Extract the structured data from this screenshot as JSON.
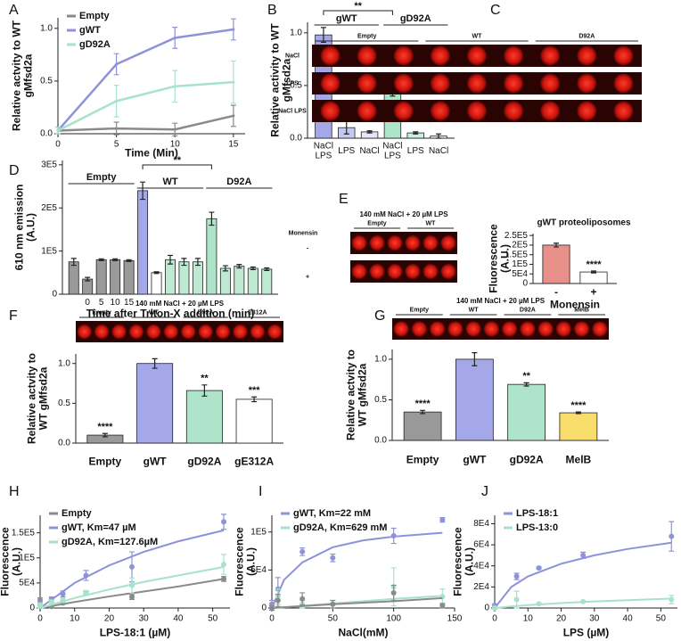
{
  "chart_data": [
    {
      "panel": "A",
      "type": "line",
      "x_label": "Time (Min)",
      "y_label": "Relative actvity to WT gMfsd2a",
      "xlim": [
        0,
        16
      ],
      "xticks": [
        0,
        5,
        10,
        15
      ],
      "ylim": [
        0,
        1.1
      ],
      "yticks": [
        {
          "value": 0,
          "label": "0.0"
        },
        {
          "value": 0.5,
          "label": "0.5"
        },
        {
          "value": 1,
          "label": "1.0"
        }
      ],
      "legend": "upper left",
      "series": [
        {
          "name": "Empty",
          "color": "#8a8a8a",
          "x": [
            0,
            5,
            10,
            15
          ],
          "values": [
            0.03,
            0.05,
            0.04,
            0.17
          ],
          "errors": [
            0.03,
            0.06,
            0.06,
            0.1
          ]
        },
        {
          "name": "gWT",
          "color": "#8e92d8",
          "x": [
            0,
            5,
            10,
            15
          ],
          "values": [
            0.03,
            0.66,
            0.91,
            0.99
          ],
          "errors": [
            0.03,
            0.1,
            0.1,
            0.1
          ]
        },
        {
          "name": "gD92A",
          "color": "#a6e3c8",
          "x": [
            0,
            5,
            10,
            15
          ],
          "values": [
            0.03,
            0.31,
            0.45,
            0.49
          ],
          "errors": [
            0.03,
            0.15,
            0.15,
            0.2
          ]
        }
      ]
    },
    {
      "panel": "B",
      "type": "bar",
      "y_label": "Relative activity to WT gMfsd2a",
      "categories": [
        "NaCl LPS",
        "LPS",
        "NaCl",
        "NaCl LPS",
        "LPS",
        "NaCl"
      ],
      "values": [
        0.98,
        0.1,
        0.06,
        0.48,
        0.05,
        0.02
      ],
      "errors": [
        0.07,
        0.06,
        0.01,
        0.08,
        0.01,
        0.02
      ],
      "colors": [
        "#a4a8e8",
        "#c5c8f0",
        "#e6e7f8",
        "#aee4c9",
        "#c9eedb",
        "#e5f6ee"
      ],
      "ylim": [
        0,
        1.1
      ],
      "yticks": [
        {
          "value": 0,
          "label": "0.0"
        },
        {
          "value": 0.5,
          "label": "0.5"
        },
        {
          "value": 1,
          "label": "1.0"
        }
      ],
      "groups": [
        "gWT",
        "gD92A"
      ],
      "bracket_label": "**"
    },
    {
      "panel": "D",
      "type": "bar",
      "x_label": "Time after Triton-X addition (min)",
      "y_label": "610 nm emission (A.U.)",
      "categories": [
        null,
        "0",
        "5",
        "10",
        "15",
        null,
        null,
        null,
        null,
        null,
        null,
        null,
        null,
        null,
        null
      ],
      "values": [
        75000,
        35000,
        80000,
        80000,
        78000,
        240000,
        50000,
        80000,
        75000,
        75000,
        175000,
        60000,
        65000,
        60000,
        58000
      ],
      "errors": [
        8000,
        4000,
        2000,
        2000,
        2000,
        20000,
        2000,
        10000,
        8000,
        8000,
        15000,
        6000,
        4000,
        3000,
        3000
      ],
      "colors": [
        "#9a9a9a",
        "#9a9a9a",
        "#9a9a9a",
        "#9a9a9a",
        "#9a9a9a",
        "#a4a8e8",
        "#ffffff",
        "#bfe9d3",
        "#bfe9d3",
        "#bfe9d3",
        "#aee4c9",
        "#bfe9d3",
        "#bfe9d3",
        "#bfe9d3",
        "#bfe9d3"
      ],
      "ylim": [
        0,
        310000
      ],
      "yticks": [
        0,
        {
          "value": 100000,
          "label": "1E5"
        },
        {
          "value": 200000,
          "label": "2E5"
        },
        {
          "value": 300000,
          "label": "3E5"
        }
      ],
      "groups": [
        "Empty",
        "WT",
        "D92A"
      ],
      "bracket_label": "**"
    },
    {
      "type": "bar",
      "title": "gWT proteoliposomes",
      "x_label": "Monensin",
      "y_label": "Fluorescence (A.U.)",
      "categories": [
        "-",
        "+"
      ],
      "values": [
        200000,
        60000
      ],
      "errors": [
        10000,
        5000
      ],
      "colors": [
        "#e8908a",
        "#ffffff"
      ],
      "significance": [
        null,
        "****"
      ],
      "ylim": [
        0,
        260000
      ],
      "yticks": [
        0,
        {
          "value": 50000,
          "label": "5E4"
        },
        {
          "value": 100000,
          "label": "1E5"
        },
        {
          "value": 150000,
          "label": "1.5E5"
        },
        {
          "value": 200000,
          "label": "2E5"
        },
        {
          "value": 250000,
          "label": "2.5E5"
        }
      ]
    },
    {
      "panel": "F",
      "type": "bar",
      "y_label": "Relative actvity to WT gMfsd2a",
      "categories": [
        "Empty",
        "gWT",
        "gD92A",
        "gE312A"
      ],
      "values": [
        0.1,
        1.0,
        0.66,
        0.55
      ],
      "errors": [
        0.02,
        0.06,
        0.07,
        0.03
      ],
      "colors": [
        "#999999",
        "#a4a8e8",
        "#aee4c9",
        "#ffffff"
      ],
      "significance": [
        "****",
        null,
        "**",
        "***"
      ],
      "ylim": [
        0,
        1.12
      ],
      "yticks": [
        {
          "value": 0,
          "label": "0.0"
        },
        {
          "value": 0.5,
          "label": "0.5"
        },
        {
          "value": 1,
          "label": "1.0"
        }
      ]
    },
    {
      "panel": "G",
      "type": "bar",
      "y_label": "Relative actvity to WT gMfsd2a",
      "categories": [
        "Empty",
        "gWT",
        "gD92A",
        "MelB"
      ],
      "values": [
        0.35,
        1.0,
        0.69,
        0.34
      ],
      "errors": [
        0.02,
        0.08,
        0.02,
        0.01
      ],
      "colors": [
        "#999999",
        "#a4a8e8",
        "#aee4c9",
        "#f8dc6c"
      ],
      "significance": [
        "****",
        null,
        "**",
        "****"
      ],
      "ylim": [
        0,
        1.12
      ],
      "yticks": [
        {
          "value": 0,
          "label": "0.0"
        },
        {
          "value": 0.5,
          "label": "0.5"
        },
        {
          "value": 1,
          "label": "1.0"
        }
      ]
    },
    {
      "panel": "H",
      "type": "scatter",
      "x_label": "LPS-18:1 (µM)",
      "y_label": "Fluorescence (A.U.)",
      "xlim": [
        0,
        55
      ],
      "xticks": [
        0,
        10,
        20,
        30,
        40,
        50
      ],
      "ylim": [
        0,
        185000
      ],
      "yticks": [
        0,
        {
          "value": 50000,
          "label": "5E4"
        },
        {
          "value": 100000,
          "label": "1E5"
        },
        {
          "value": 150000,
          "label": "1.5E5"
        }
      ],
      "legend": "upper left",
      "series": [
        {
          "name": "Empty",
          "color": "#8a8a8a",
          "x": [
            0,
            3.3,
            6.6,
            13.3,
            26.6,
            53.2
          ],
          "values": [
            15000,
            3000,
            10000,
            30000,
            22000,
            58000
          ],
          "errors": [
            5000,
            3000,
            3000,
            3000,
            5000,
            5000
          ],
          "fit": {
            "x": [
              0,
              10,
              20,
              30,
              40,
              53.2
            ],
            "values": [
              0,
              12000,
              23000,
              33000,
              43000,
              58000
            ]
          }
        },
        {
          "name": "gWT, Km=47 µM",
          "color": "#8e92d8",
          "x": [
            0,
            3.3,
            6.6,
            13.3,
            26.6,
            53.2
          ],
          "values": [
            10000,
            18000,
            28000,
            65000,
            82000,
            172000
          ],
          "errors": [
            5000,
            4000,
            6000,
            10000,
            30000,
            15000
          ],
          "fit": {
            "x": [
              0,
              10,
              20,
              30,
              40,
              53.2
            ],
            "values": [
              0,
              50000,
              85000,
              112000,
              133000,
              155000
            ]
          }
        },
        {
          "name": "gD92A, Km=127.6µM",
          "color": "#a6e3c8",
          "x": [
            0,
            3.3,
            6.6,
            13.3,
            26.6,
            53.2
          ],
          "values": [
            5000,
            12000,
            15000,
            30000,
            45000,
            87000
          ],
          "errors": [
            5000,
            4000,
            4000,
            5000,
            15000,
            20000
          ],
          "fit": {
            "x": [
              0,
              10,
              20,
              30,
              40,
              53.2
            ],
            "values": [
              0,
              20000,
              37000,
              52000,
              65000,
              82000
            ]
          }
        }
      ]
    },
    {
      "panel": "I",
      "type": "scatter",
      "x_label": "NaCl(mM)",
      "y_label": "Fluorescence (A.U.)",
      "xlim": [
        0,
        150
      ],
      "xticks": [
        0,
        50,
        100,
        150
      ],
      "ylim": [
        0,
        122000
      ],
      "yticks": [
        0,
        {
          "value": 50000,
          "label": "5E4"
        },
        {
          "value": 100000,
          "label": "1E5"
        }
      ],
      "legend": "upper left",
      "series": [
        {
          "name": "gWT, Km=22 mM",
          "color": "#8e92d8",
          "x": [
            0,
            5,
            25,
            50,
            100,
            140
          ],
          "values": [
            5000,
            25000,
            74000,
            66000,
            95000,
            116000
          ],
          "errors": [
            5000,
            15000,
            5000,
            5000,
            10000,
            3000
          ],
          "fit": {
            "x": [
              0,
              10,
              25,
              50,
              75,
              100,
              140
            ],
            "values": [
              0,
              37000,
              60000,
              80000,
              89000,
              94000,
              99000
            ]
          }
        },
        {
          "name": "gD92A, Km=629 mM",
          "color": "#a6e3c8",
          "x": [
            0,
            5,
            25,
            50,
            100,
            140
          ],
          "values": [
            0,
            15000,
            5000,
            5000,
            28000,
            15000
          ],
          "errors": [
            3000,
            10000,
            5000,
            5000,
            25000,
            10000
          ],
          "fit": {
            "x": [
              0,
              10,
              25,
              50,
              75,
              100,
              140
            ],
            "values": [
              0,
              1000,
              3000,
              6000,
              9000,
              12000,
              16000
            ]
          }
        },
        {
          "color": "#8a8a8a",
          "x": [
            0,
            5,
            25,
            50,
            100,
            140
          ],
          "values": [
            0,
            10000,
            12000,
            5000,
            20000,
            3000
          ],
          "errors": [
            3000,
            8000,
            8000,
            5000,
            10000,
            3000
          ],
          "fit": {
            "x": [
              0,
              10,
              25,
              50,
              75,
              100,
              140
            ],
            "values": [
              0,
              1000,
              2500,
              5000,
              7000,
              9000,
              13000
            ]
          }
        }
      ]
    },
    {
      "panel": "J",
      "type": "scatter",
      "x_label": "LPS (µM)",
      "y_label": "Fluorescence (A.U.)",
      "xlim": [
        0,
        55
      ],
      "xticks": [
        0,
        10,
        20,
        30,
        40,
        50
      ],
      "ylim": [
        0,
        88000
      ],
      "yticks": [
        0,
        {
          "value": 20000,
          "label": "2E4"
        },
        {
          "value": 40000,
          "label": "4E4"
        },
        {
          "value": 60000,
          "label": "6E4"
        },
        {
          "value": 80000,
          "label": "8E4"
        }
      ],
      "legend": "upper left",
      "series": [
        {
          "name": "LPS-18:1",
          "color": "#8e92d8",
          "x": [
            0,
            6.6,
            13.3,
            26.6,
            53.2
          ],
          "values": [
            2000,
            30000,
            38000,
            50000,
            68000
          ],
          "errors": [
            2000,
            3000,
            1000,
            3000,
            14000
          ],
          "fit": {
            "x": [
              0,
              5,
              10,
              20,
              30,
              40,
              53.2
            ],
            "values": [
              0,
              20000,
              30000,
              42000,
              50000,
              56000,
              62000
            ]
          }
        },
        {
          "name": "LPS-13:0",
          "color": "#a6e3c8",
          "x": [
            0,
            6.6,
            13.3,
            26.6,
            53.2
          ],
          "values": [
            0,
            8000,
            4000,
            6000,
            8000
          ],
          "errors": [
            1000,
            8000,
            1000,
            1000,
            4000
          ],
          "fit": {
            "x": [
              0,
              5,
              10,
              20,
              30,
              40,
              53.2
            ],
            "values": [
              0,
              1500,
              2800,
              4700,
              6200,
              7400,
              9000
            ]
          }
        }
      ]
    }
  ],
  "gels": [
    {
      "panel": "C",
      "columns": [
        "Empty",
        "WT",
        "D92A"
      ],
      "rows": [
        "NaCl",
        "LPS",
        "NaCl LPS"
      ]
    },
    {
      "panel": "E",
      "title": "140 mM NaCl + 20 µM LPS",
      "columns": [
        "Empty",
        "WT"
      ],
      "row_title": "Monensin",
      "rows": [
        "-",
        "+"
      ]
    },
    {
      "title": "140 mM NaCl + 20 µM LPS",
      "columns": [
        "Empty",
        "WT",
        "D92A",
        "E312A"
      ]
    },
    {
      "title": "140 mM NaCl + 20 µM LPS",
      "columns": [
        "Empty",
        "WT",
        "D92A",
        "MelB"
      ]
    }
  ]
}
